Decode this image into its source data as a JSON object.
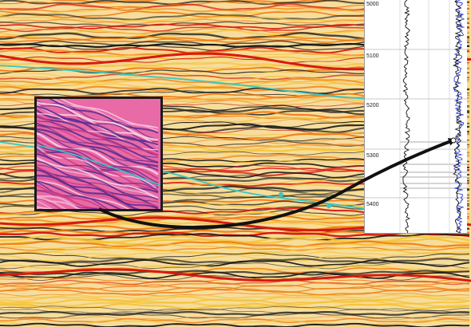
{
  "colors": {
    "seismic_peak_strong": "#d61b10",
    "seismic_peak": "#f07a12",
    "seismic_mid": "#f4c235",
    "seismic_pale": "#f7dd9c",
    "seismic_trough": "#1a1a1a",
    "horizon_cyan": "#39c7c2",
    "inset_pink": "#e86aa6",
    "inset_purple": "#5b2a8e",
    "well_log_blue": "#2a3fd6",
    "arrow": "#111111"
  },
  "well_panel": {
    "depth_labels": [
      "5000",
      "5100",
      "5200",
      "5300",
      "5400"
    ]
  },
  "icons": {
    "arrow": "curved-arrow-icon"
  }
}
